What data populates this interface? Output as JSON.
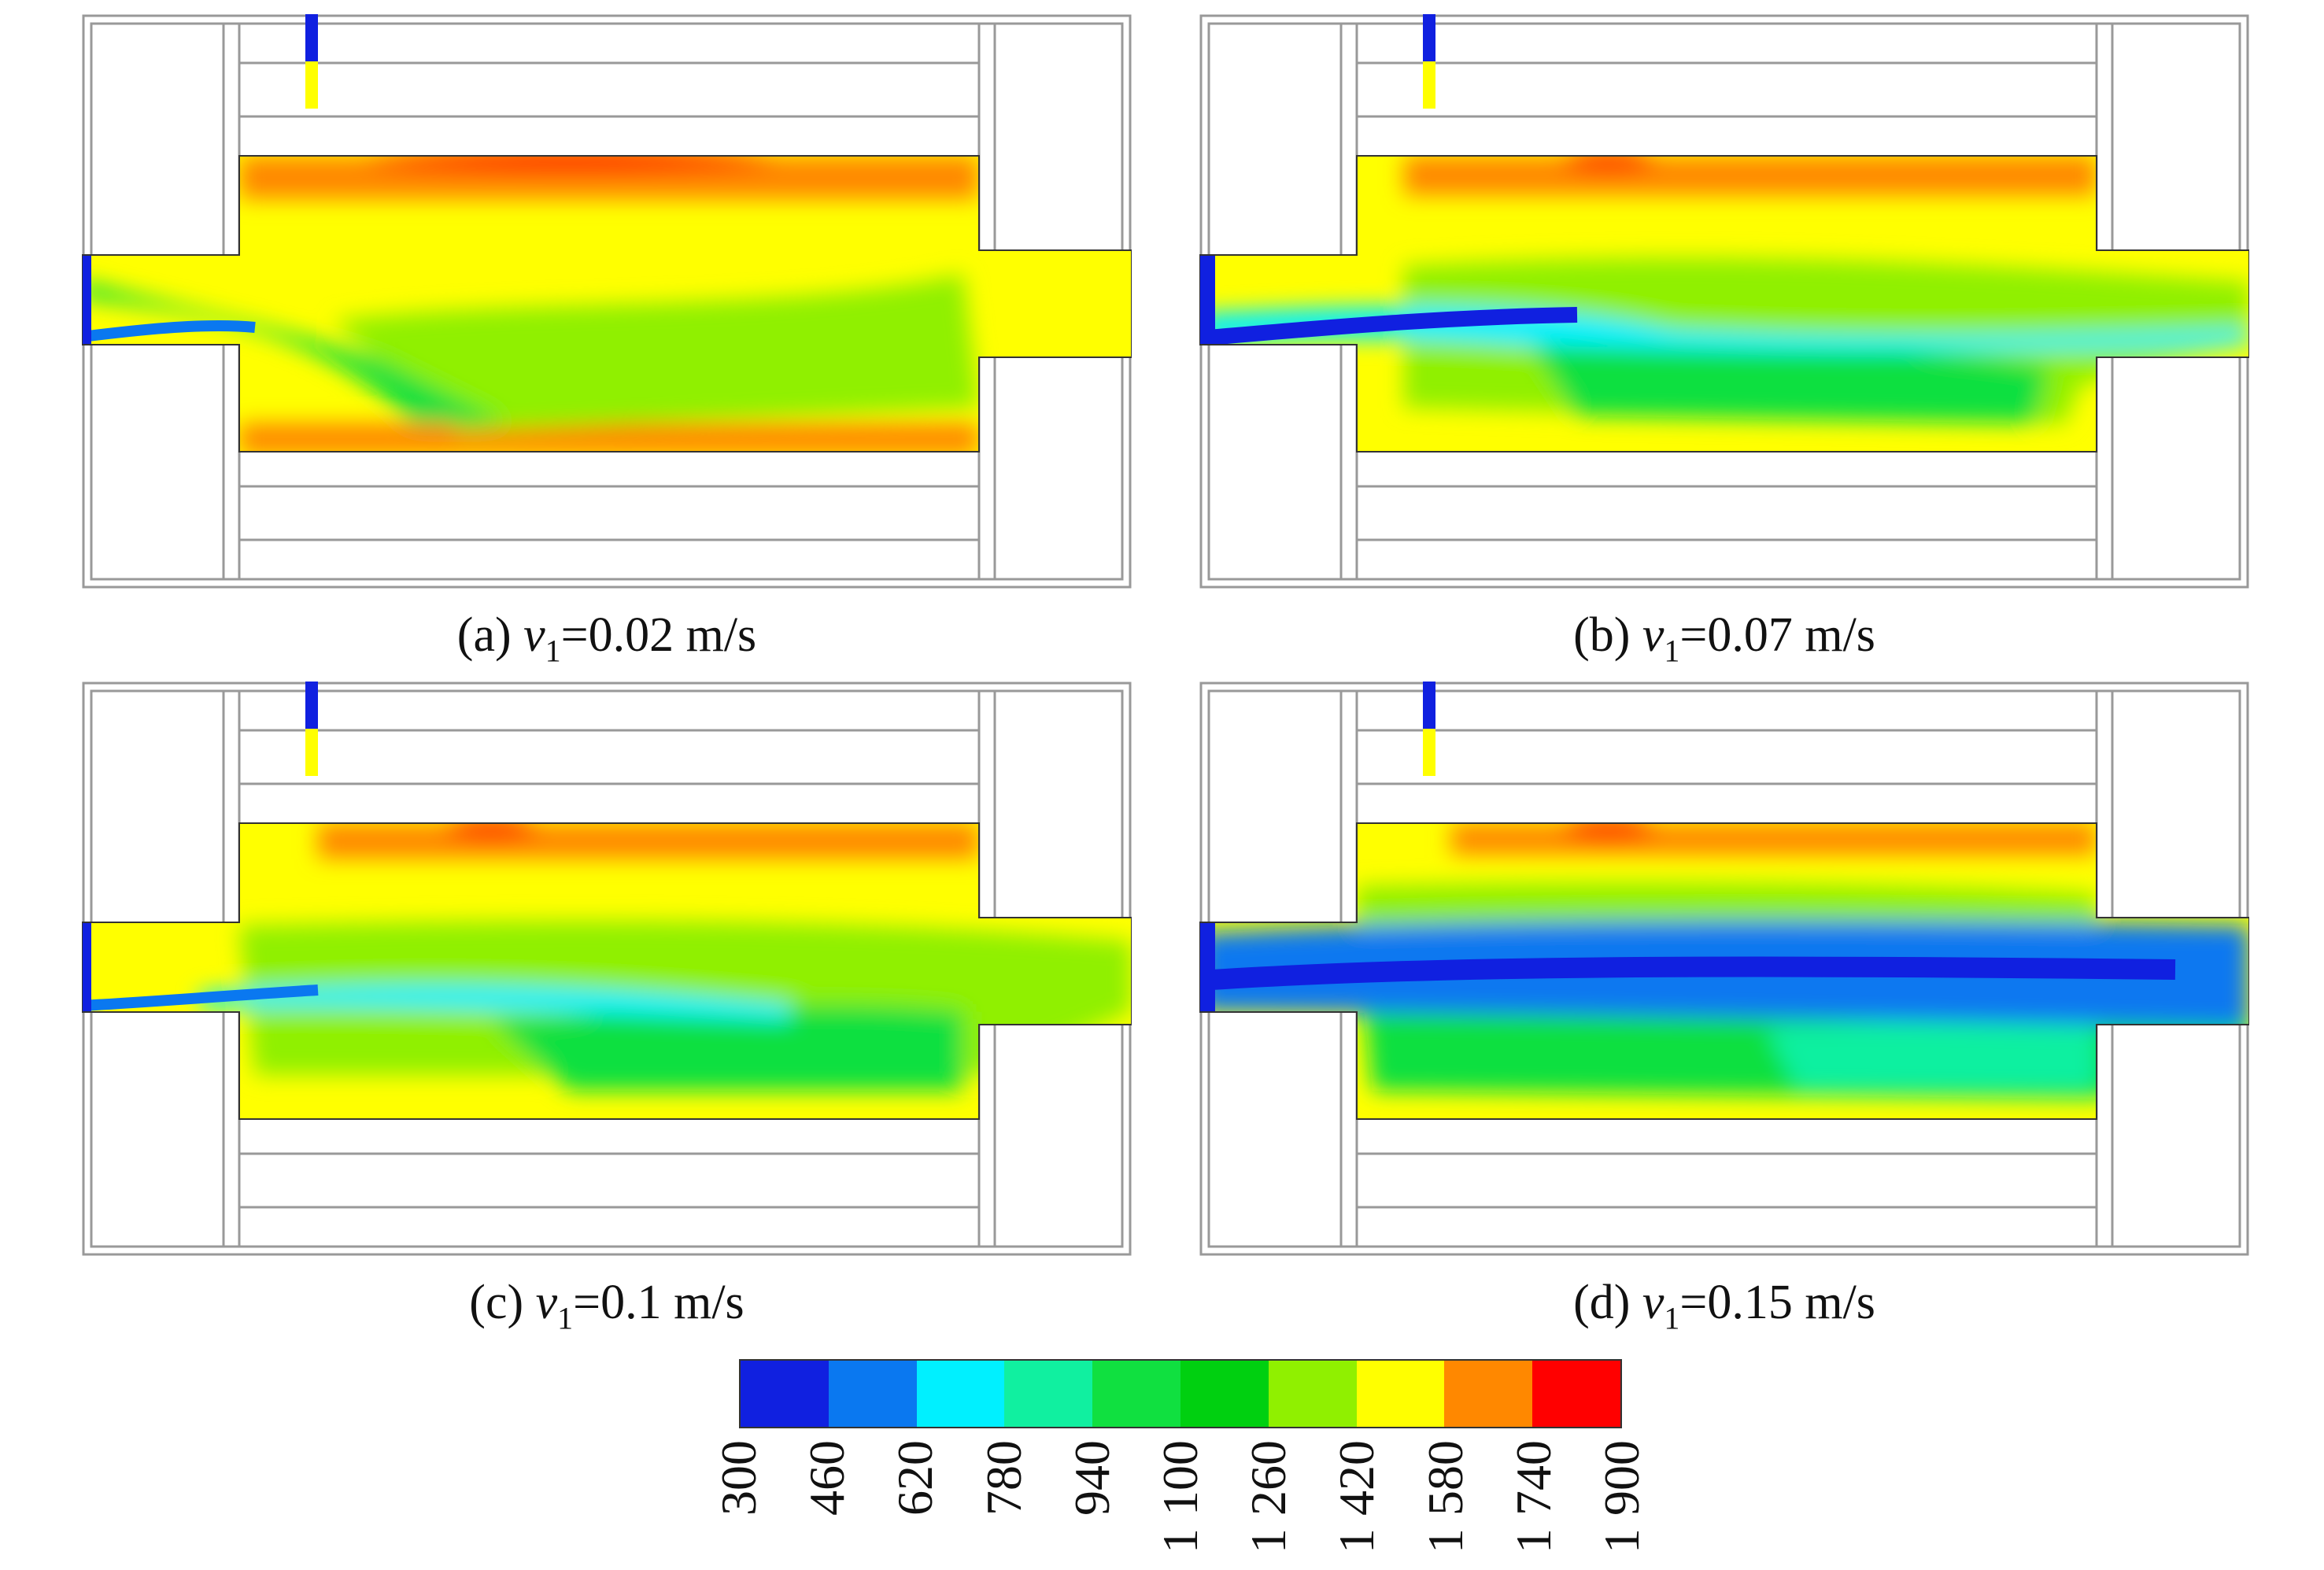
{
  "panels": [
    {
      "id": "a",
      "prefix": "(a) ",
      "var": "v",
      "sub": "1",
      "value": "=0.02 m/s"
    },
    {
      "id": "b",
      "prefix": "(b) ",
      "var": "v",
      "sub": "1",
      "value": "=0.07 m/s"
    },
    {
      "id": "c",
      "prefix": "(c) ",
      "var": "v",
      "sub": "1",
      "value": "=0.1 m/s"
    },
    {
      "id": "d",
      "prefix": "(d) ",
      "var": "v",
      "sub": "1",
      "value": "=0.15 m/s"
    }
  ],
  "colorbar": {
    "colors": [
      "#1020e0",
      "#0a78f0",
      "#00f0ff",
      "#10f0a0",
      "#10e040",
      "#00d010",
      "#90f000",
      "#ffff00",
      "#ff8800",
      "#ff0000"
    ],
    "ticks": [
      "300",
      "460",
      "620",
      "780",
      "940",
      "1 100",
      "1 260",
      "1 420",
      "1 580",
      "1 740",
      "1 900"
    ]
  }
}
